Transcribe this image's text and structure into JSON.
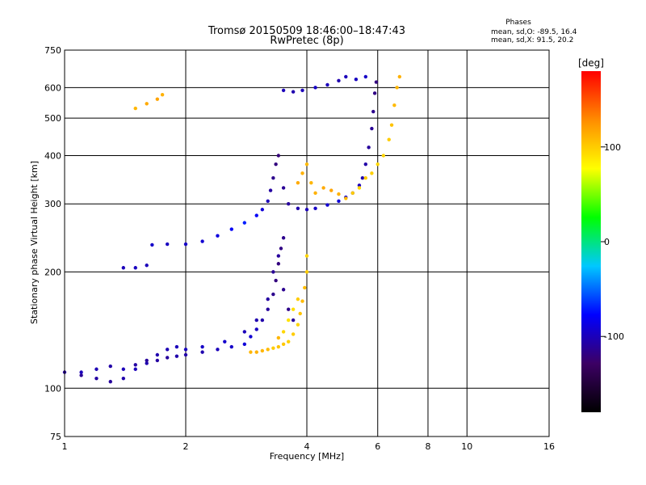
{
  "chart_data": {
    "type": "scatter",
    "title": "Tromsø 20150509 18:46:00–18:47:43",
    "subtitle": "RwPretec (8p)",
    "xlabel": "Frequency [MHz]",
    "ylabel": "Stationary phase Virtual Height [km]",
    "x_scale": "log",
    "y_scale": "log",
    "xlim": [
      1,
      16
    ],
    "ylim": [
      75,
      750
    ],
    "x_ticks": [
      1,
      2,
      4,
      6,
      8,
      10,
      16
    ],
    "y_ticks": [
      75,
      100,
      200,
      300,
      400,
      500,
      600,
      750
    ],
    "grid": true,
    "phase_note": {
      "heading": "Phases",
      "line_o": "mean, sd,O: -89.5, 16.4",
      "line_x": "mean, sd,X:  91.5, 20.2"
    },
    "colorbar": {
      "label": "[deg]",
      "range": [
        -180,
        180
      ],
      "ticks": [
        100,
        0,
        -100
      ],
      "colors": [
        "#000000",
        "#3c0064",
        "#0000ff",
        "#00c8ff",
        "#00ff00",
        "#ffff00",
        "#ff8c00",
        "#ff0000"
      ]
    },
    "series": [
      {
        "points": [
          [
            1.0,
            110,
            -110
          ],
          [
            1.1,
            108,
            -112
          ],
          [
            1.2,
            106,
            -108
          ],
          [
            1.3,
            104,
            -110
          ],
          [
            1.4,
            106,
            -105
          ],
          [
            1.5,
            112,
            -100
          ],
          [
            1.6,
            116,
            -104
          ],
          [
            1.7,
            118,
            -108
          ],
          [
            1.8,
            120,
            -110
          ],
          [
            1.9,
            121,
            -105
          ],
          [
            2.0,
            122,
            -106
          ],
          [
            2.2,
            124,
            -104
          ],
          [
            2.4,
            126,
            -100
          ],
          [
            2.6,
            128,
            -95
          ],
          [
            2.8,
            130,
            -90
          ],
          [
            2.9,
            136,
            -92
          ],
          [
            3.0,
            142,
            -98
          ],
          [
            3.1,
            150,
            -105
          ],
          [
            3.2,
            160,
            -110
          ],
          [
            3.3,
            175,
            -115
          ],
          [
            3.35,
            190,
            -120
          ],
          [
            3.4,
            210,
            -120
          ],
          [
            3.45,
            230,
            -118
          ],
          [
            3.5,
            245,
            -115
          ]
        ]
      },
      {
        "points": [
          [
            1.1,
            110,
            -100
          ],
          [
            1.2,
            112,
            -102
          ],
          [
            1.3,
            114,
            -106
          ],
          [
            1.4,
            112,
            -100
          ],
          [
            1.5,
            115,
            -108
          ],
          [
            1.6,
            118,
            -110
          ],
          [
            1.7,
            122,
            -104
          ],
          [
            1.8,
            126,
            -102
          ],
          [
            1.9,
            128,
            -100
          ],
          [
            2.0,
            126,
            -98
          ],
          [
            2.2,
            128,
            -96
          ],
          [
            2.5,
            132,
            -94
          ],
          [
            2.8,
            140,
            -100
          ],
          [
            3.0,
            150,
            -104
          ],
          [
            3.2,
            170,
            -108
          ],
          [
            3.3,
            200,
            -112
          ],
          [
            3.4,
            220,
            -110
          ],
          [
            3.5,
            180,
            -114
          ],
          [
            3.6,
            160,
            -116
          ],
          [
            3.7,
            150,
            -110
          ]
        ]
      },
      {
        "points": [
          [
            2.9,
            124,
            110
          ],
          [
            3.0,
            124,
            112
          ],
          [
            3.1,
            125,
            110
          ],
          [
            3.2,
            126,
            108
          ],
          [
            3.3,
            127,
            100
          ],
          [
            3.4,
            128,
            104
          ],
          [
            3.5,
            130,
            102
          ],
          [
            3.6,
            132,
            98
          ],
          [
            3.7,
            138,
            100
          ],
          [
            3.8,
            146,
            96
          ],
          [
            3.85,
            156,
            104
          ],
          [
            3.9,
            168,
            108
          ],
          [
            3.95,
            182,
            106
          ],
          [
            4.0,
            200,
            100
          ],
          [
            4.0,
            220,
            96
          ],
          [
            3.5,
            140,
            95
          ],
          [
            3.6,
            150,
            90
          ],
          [
            3.7,
            160,
            92
          ],
          [
            3.8,
            170,
            100
          ],
          [
            3.4,
            135,
            110
          ]
        ]
      },
      {
        "points": [
          [
            1.4,
            205,
            -100
          ],
          [
            1.5,
            205,
            -98
          ],
          [
            1.6,
            208,
            -100
          ],
          [
            1.65,
            235,
            -95
          ],
          [
            1.8,
            236,
            -98
          ],
          [
            2.0,
            236,
            -96
          ],
          [
            2.2,
            240,
            -92
          ],
          [
            2.4,
            248,
            -88
          ],
          [
            2.6,
            258,
            -80
          ],
          [
            2.8,
            268,
            -70
          ],
          [
            3.0,
            280,
            -80
          ],
          [
            3.1,
            290,
            -90
          ],
          [
            3.2,
            305,
            -100
          ],
          [
            3.25,
            325,
            -108
          ],
          [
            3.3,
            350,
            -115
          ],
          [
            3.35,
            380,
            -120
          ],
          [
            3.4,
            400,
            -122
          ],
          [
            3.5,
            330,
            -112
          ],
          [
            3.6,
            300,
            -110
          ],
          [
            3.8,
            292,
            -105
          ],
          [
            4.0,
            290,
            -100
          ],
          [
            4.2,
            292,
            -96
          ],
          [
            4.5,
            298,
            -92
          ],
          [
            4.8,
            305,
            -90
          ],
          [
            5.0,
            312,
            -92
          ],
          [
            5.2,
            320,
            -95
          ],
          [
            5.4,
            335,
            -100
          ],
          [
            5.5,
            350,
            -104
          ],
          [
            5.6,
            380,
            -106
          ],
          [
            5.7,
            420,
            -110
          ],
          [
            5.8,
            470,
            -112
          ],
          [
            5.85,
            520,
            -115
          ],
          [
            5.9,
            580,
            -118
          ],
          [
            5.95,
            620,
            -120
          ]
        ]
      },
      {
        "points": [
          [
            3.8,
            340,
            115
          ],
          [
            3.9,
            360,
            112
          ],
          [
            4.0,
            380,
            108
          ],
          [
            4.1,
            340,
            110
          ],
          [
            4.2,
            320,
            112
          ],
          [
            4.4,
            330,
            115
          ],
          [
            4.6,
            325,
            118
          ],
          [
            4.8,
            318,
            112
          ],
          [
            5.0,
            310,
            108
          ],
          [
            5.2,
            320,
            100
          ],
          [
            5.4,
            330,
            96
          ],
          [
            5.6,
            350,
            100
          ],
          [
            5.8,
            360,
            98
          ],
          [
            6.0,
            380,
            95
          ],
          [
            6.2,
            400,
            96
          ],
          [
            6.4,
            440,
            100
          ],
          [
            6.5,
            480,
            104
          ],
          [
            6.6,
            540,
            108
          ],
          [
            6.7,
            600,
            110
          ],
          [
            6.8,
            640,
            112
          ]
        ]
      },
      {
        "points": [
          [
            3.5,
            590,
            -100
          ],
          [
            3.7,
            585,
            -104
          ],
          [
            3.9,
            590,
            -100
          ],
          [
            4.2,
            600,
            -96
          ],
          [
            4.5,
            610,
            -100
          ],
          [
            4.8,
            625,
            -104
          ],
          [
            5.0,
            640,
            -100
          ],
          [
            5.3,
            630,
            -98
          ],
          [
            5.6,
            640,
            -96
          ]
        ]
      },
      {
        "points": [
          [
            1.5,
            530,
            110
          ],
          [
            1.6,
            545,
            115
          ],
          [
            1.7,
            560,
            118
          ],
          [
            1.75,
            575,
            112
          ]
        ]
      }
    ]
  }
}
